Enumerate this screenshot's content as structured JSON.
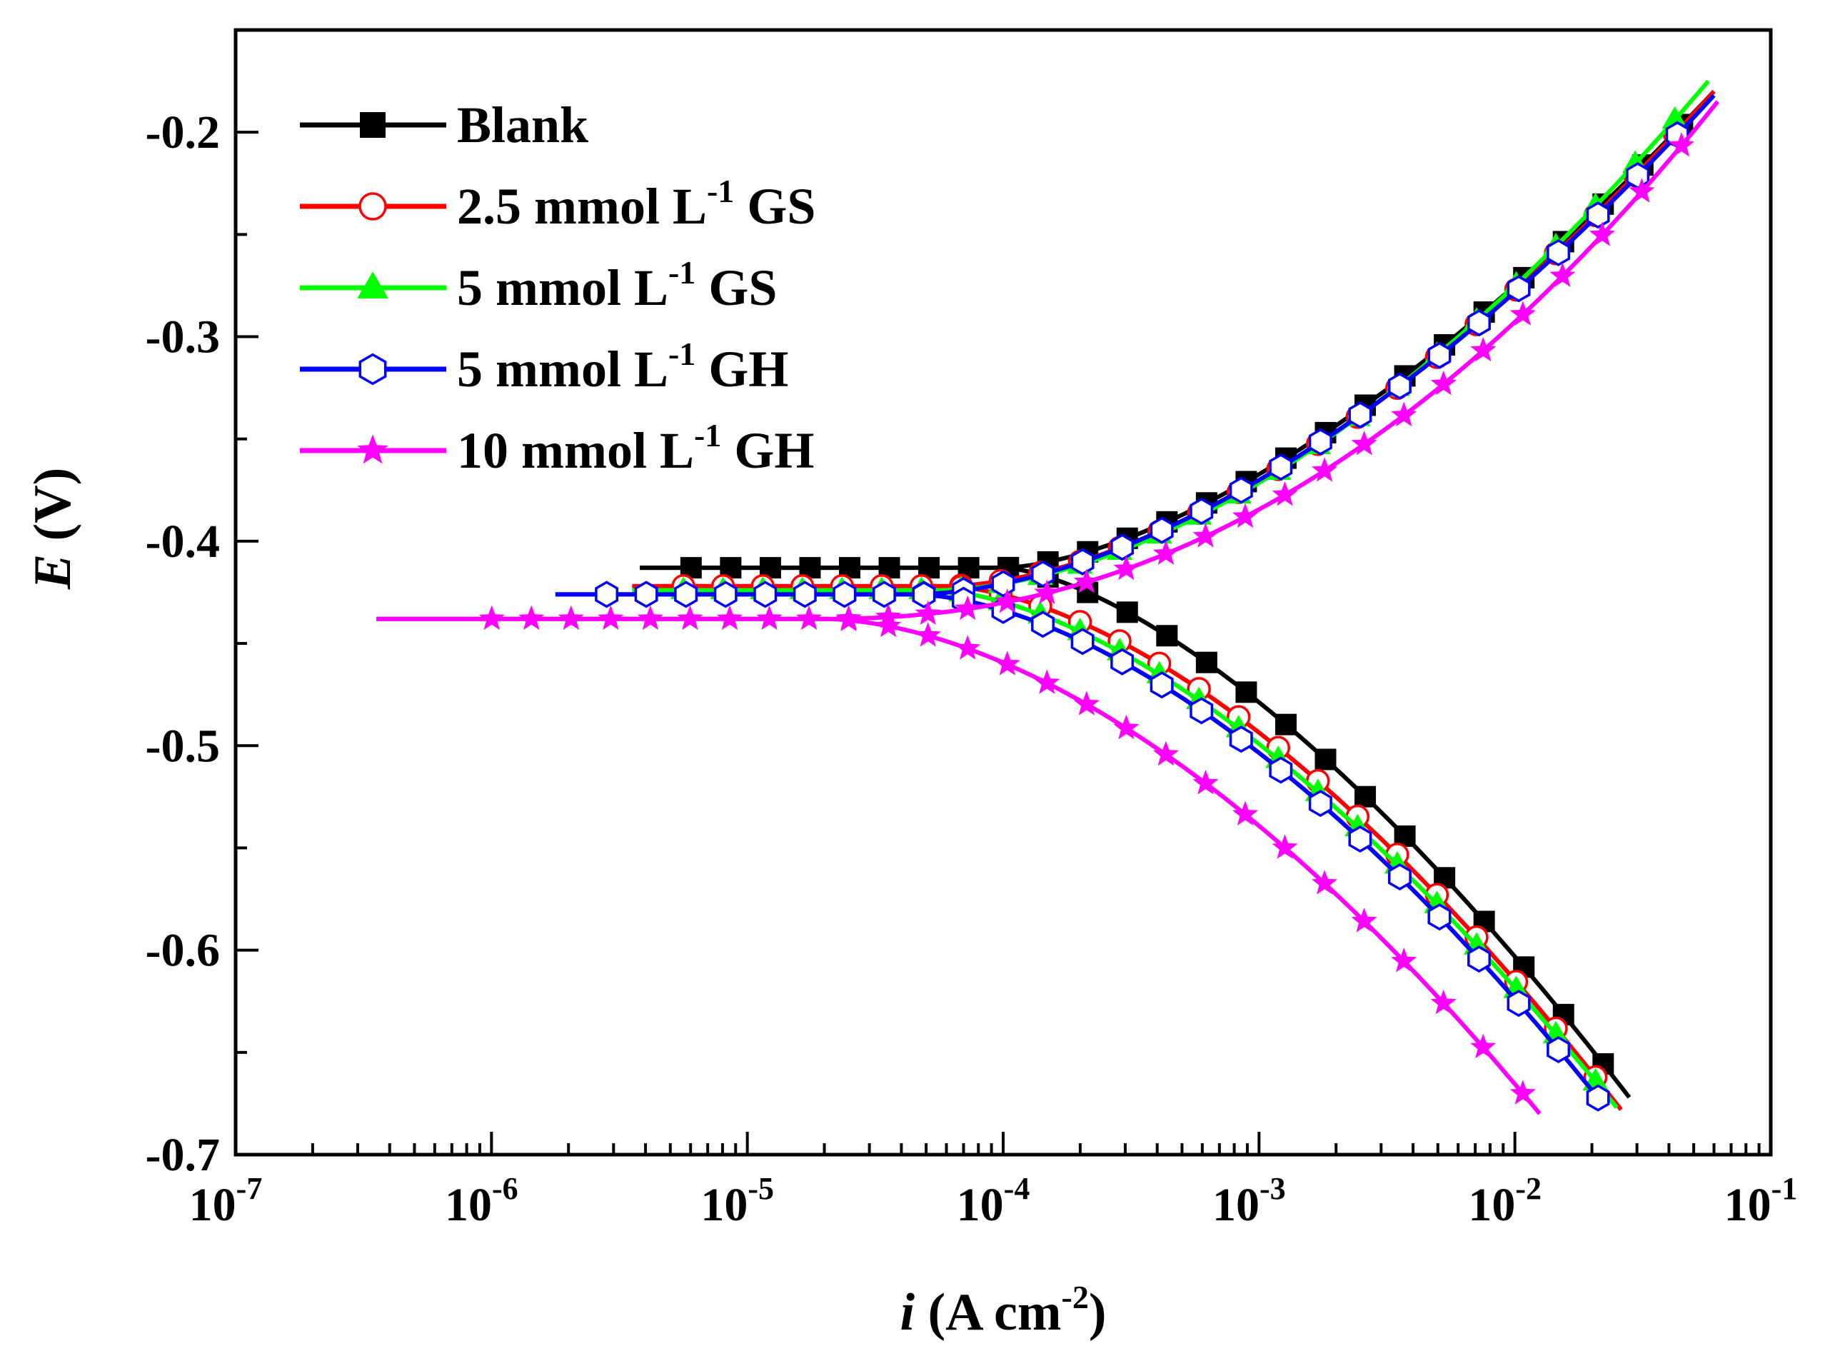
{
  "chart_data": {
    "type": "line",
    "xscale": "log",
    "xlim": [
      1e-07,
      0.1
    ],
    "ylim": [
      -0.7,
      -0.15
    ],
    "xlabel": {
      "var": "i",
      "open": " (A cm",
      "exp": "-2",
      "close": ")"
    },
    "ylabel": {
      "var": "E",
      "rest": " (V)"
    },
    "x_ticks": [
      {
        "value": 1e-07,
        "base": "10",
        "exp": "-7"
      },
      {
        "value": 1e-06,
        "base": "10",
        "exp": "-6"
      },
      {
        "value": 1e-05,
        "base": "10",
        "exp": "-5"
      },
      {
        "value": 0.0001,
        "base": "10",
        "exp": "-4"
      },
      {
        "value": 0.001,
        "base": "10",
        "exp": "-3"
      },
      {
        "value": 0.01,
        "base": "10",
        "exp": "-2"
      },
      {
        "value": 0.1,
        "base": "10",
        "exp": "-1"
      }
    ],
    "y_ticks": [
      {
        "value": -0.2,
        "label": "-0.2"
      },
      {
        "value": -0.3,
        "label": "-0.3"
      },
      {
        "value": -0.4,
        "label": "-0.4"
      },
      {
        "value": -0.5,
        "label": "-0.5"
      },
      {
        "value": -0.6,
        "label": "-0.6"
      },
      {
        "value": -0.7,
        "label": "-0.7"
      }
    ],
    "legend_position": "top-left",
    "series": [
      {
        "name": "Blank",
        "label_parts": [
          "Blank"
        ],
        "color": "#000000",
        "marker": "square-filled",
        "ecorr": -0.413,
        "icorr": 0.0001,
        "a_decades": 2.55,
        "c_decades": 2.45,
        "anodic_ref": [
          0.06,
          -0.18
        ],
        "cathodic_ref": [
          0.028,
          -0.672
        ],
        "start_log": -5.42
      },
      {
        "name": "2.5 mmol L-1 GS",
        "label_parts": [
          "2.5 mmol L",
          "-1",
          " GS"
        ],
        "color": "#ff0000",
        "marker": "circle-open",
        "ecorr": -0.422,
        "icorr": 6e-05,
        "a_decades": 2.75,
        "c_decades": 2.65,
        "anodic_ref": [
          0.06,
          -0.18
        ],
        "cathodic_ref": [
          0.026,
          -0.678
        ],
        "start_log": -5.45
      },
      {
        "name": "5 mmol L-1 GS",
        "label_parts": [
          "5 mmol L",
          "-1",
          "  GS"
        ],
        "color": "#00ff00",
        "marker": "triangle-filled",
        "ecorr": -0.424,
        "icorr": 5.5e-05,
        "a_decades": 2.85,
        "c_decades": 2.6,
        "anodic_ref": [
          0.057,
          -0.175
        ],
        "cathodic_ref": [
          0.025,
          -0.677
        ],
        "start_log": -5.45
      },
      {
        "name": "5 mmol L-1 GH",
        "label_parts": [
          "5 mmol L",
          "-1",
          " GH"
        ],
        "color": "#0000ff",
        "marker": "hexagon-open",
        "ecorr": -0.426,
        "icorr": 4.5e-05,
        "a_decades": 2.8,
        "c_decades": 2.7,
        "anodic_ref": [
          0.06,
          -0.182
        ],
        "cathodic_ref": [
          0.022,
          -0.675
        ],
        "start_log": -5.75
      },
      {
        "name": "10 mmol L-1 GH",
        "label_parts": [
          "10 mmol L",
          "-1",
          " GH"
        ],
        "color": "#ff00ff",
        "marker": "star-filled",
        "ecorr": -0.438,
        "icorr": 2e-05,
        "a_decades": 3.45,
        "c_decades": 2.8,
        "anodic_ref": [
          0.062,
          -0.185
        ],
        "cathodic_ref": [
          0.0125,
          -0.68
        ],
        "start_log": -6.45
      }
    ]
  }
}
